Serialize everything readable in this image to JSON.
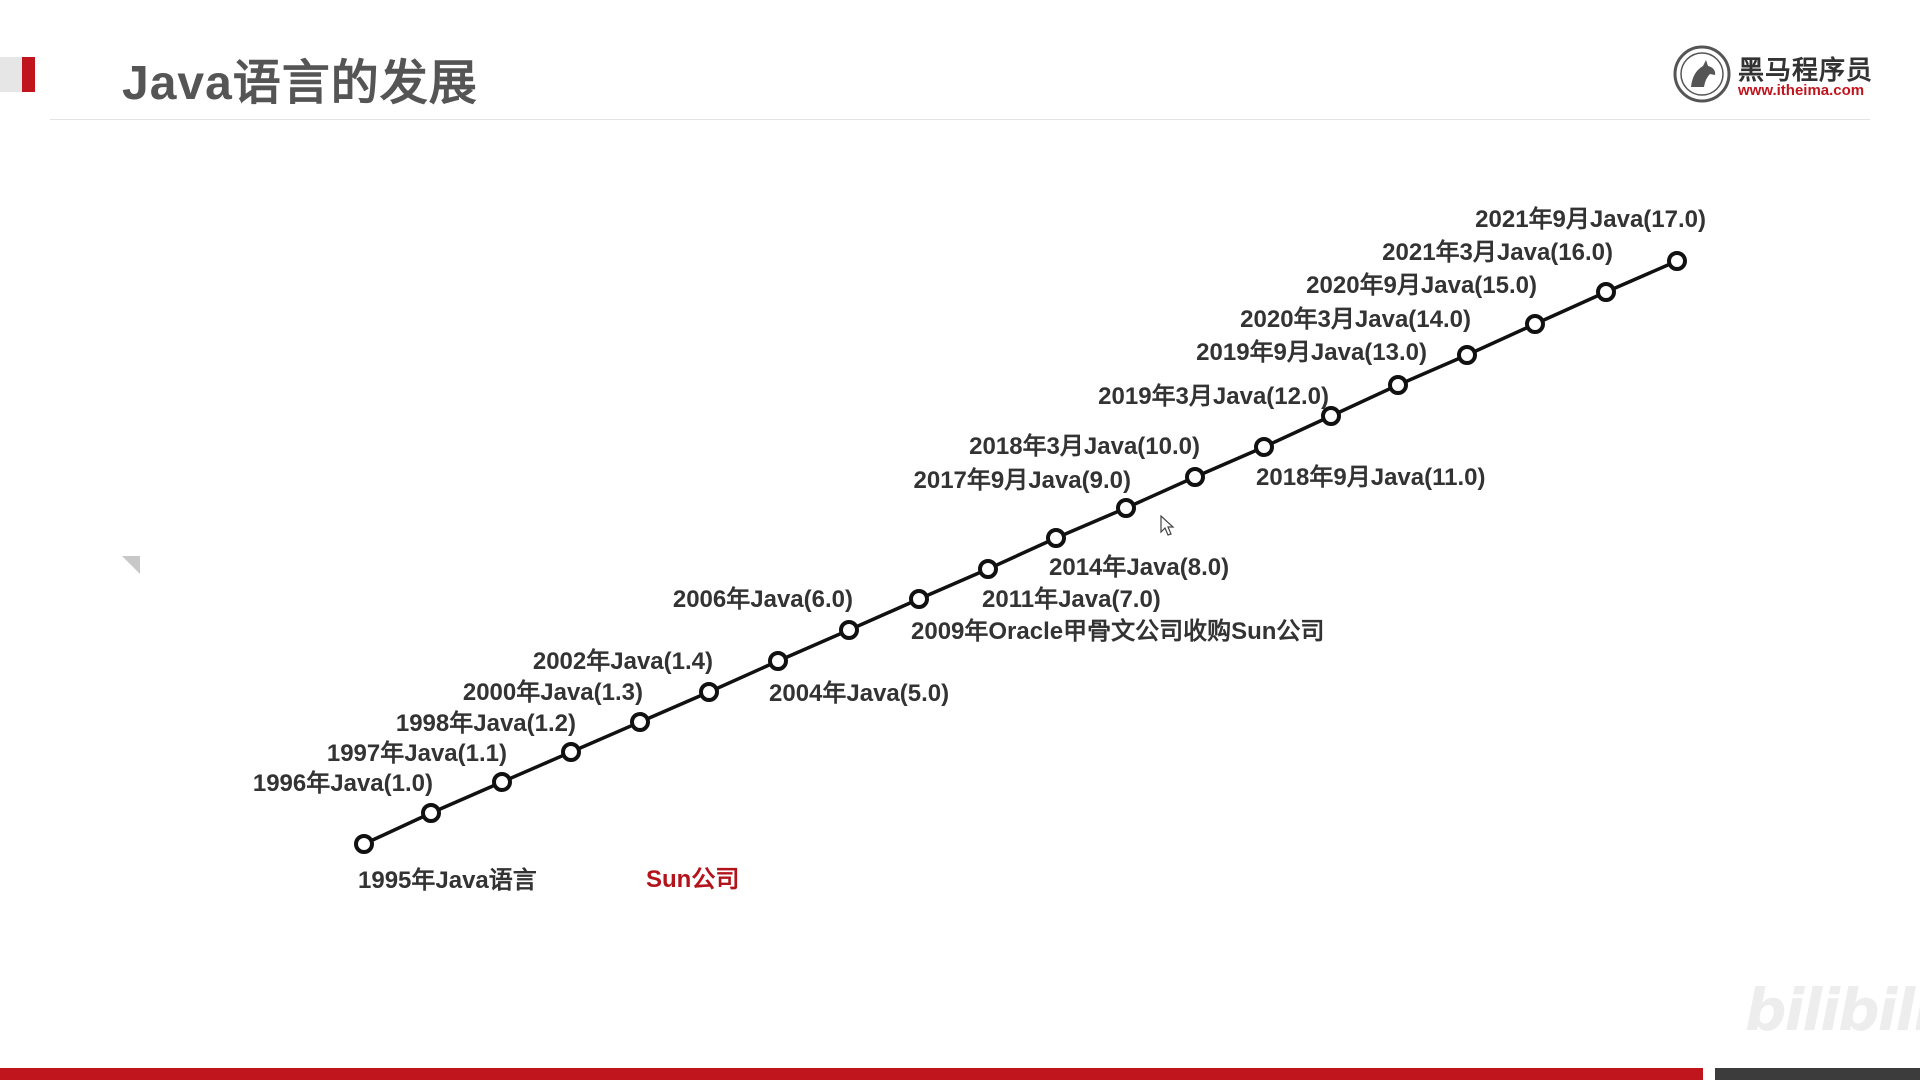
{
  "slide": {
    "title": "Java语言的发展"
  },
  "logo": {
    "name": "黑马程序员",
    "url": "www.itheima.com"
  },
  "timeline": {
    "events": [
      {
        "label": "1995年Java语言",
        "side": "below"
      },
      {
        "label": "1996年Java(1.0)",
        "side": "above"
      },
      {
        "label": "1997年Java(1.1)",
        "side": "above"
      },
      {
        "label": "1998年Java(1.2)",
        "side": "above"
      },
      {
        "label": "2000年Java(1.3)",
        "side": "above"
      },
      {
        "label": "2002年Java(1.4)",
        "side": "above"
      },
      {
        "label": "2004年Java(5.0)",
        "side": "below"
      },
      {
        "label": "2006年Java(6.0)",
        "side": "above"
      },
      {
        "label": "2009年Oracle甲骨文公司收购Sun公司",
        "side": "below"
      },
      {
        "label": "2011年Java(7.0)",
        "side": "below"
      },
      {
        "label": "2014年Java(8.0)",
        "side": "below"
      },
      {
        "label": "2017年9月Java(9.0)",
        "side": "above"
      },
      {
        "label": "2018年3月Java(10.0)",
        "side": "above"
      },
      {
        "label": "2018年9月Java(11.0)",
        "side": "below"
      },
      {
        "label": "2019年3月Java(12.0)",
        "side": "above"
      },
      {
        "label": "2019年9月Java(13.0)",
        "side": "above"
      },
      {
        "label": "2020年3月Java(14.0)",
        "side": "above"
      },
      {
        "label": "2020年9月Java(15.0)",
        "side": "above"
      },
      {
        "label": "2021年3月Java(16.0)",
        "side": "above"
      },
      {
        "label": "2021年9月Java(17.0)",
        "side": "above"
      }
    ],
    "company_label": "Sun公司",
    "colors": {
      "line": "#111111",
      "text": "#333333",
      "company": "#b3131a"
    }
  },
  "watermark": {
    "text": "bilibili"
  }
}
